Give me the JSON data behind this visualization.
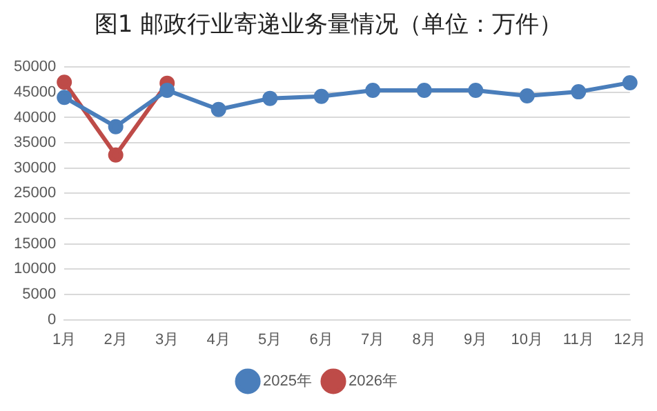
{
  "chart_data": {
    "type": "line",
    "title": "图1 邮政行业寄递业务量情况（单位：万件）",
    "categories": [
      "1月",
      "2月",
      "3月",
      "4月",
      "5月",
      "6月",
      "7月",
      "8月",
      "9月",
      "10月",
      "11月",
      "12月"
    ],
    "series": [
      {
        "name": "2025年",
        "color": "#4a7ebb",
        "values": [
          44000,
          38200,
          45400,
          41600,
          43800,
          44200,
          45400,
          45400,
          45400,
          44300,
          45100,
          46900
        ]
      },
      {
        "name": "2026年",
        "color": "#be4b48",
        "values": [
          47000,
          32600,
          46800,
          null,
          null,
          null,
          null,
          null,
          null,
          null,
          null,
          null
        ]
      }
    ],
    "ylim": [
      0,
      50000
    ],
    "yticks": [
      0,
      5000,
      10000,
      15000,
      20000,
      25000,
      30000,
      35000,
      40000,
      45000,
      50000
    ],
    "grid": "y",
    "legend": "bottom",
    "marker": "circle",
    "line_style": "solid"
  }
}
